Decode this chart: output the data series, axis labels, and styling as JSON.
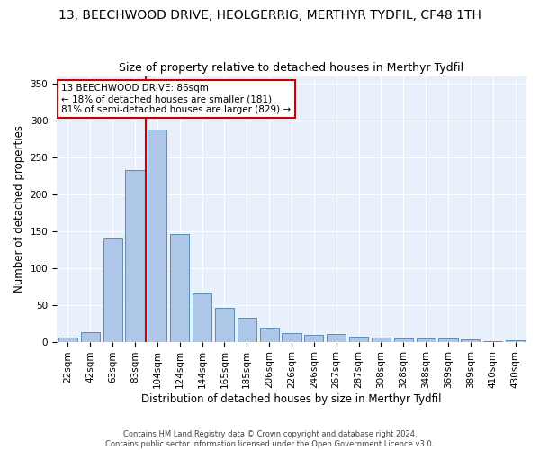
{
  "title": "13, BEECHWOOD DRIVE, HEOLGERRIG, MERTHYR TYDFIL, CF48 1TH",
  "subtitle": "Size of property relative to detached houses in Merthyr Tydfil",
  "xlabel": "Distribution of detached houses by size in Merthyr Tydfil",
  "ylabel": "Number of detached properties",
  "footer_line1": "Contains HM Land Registry data © Crown copyright and database right 2024.",
  "footer_line2": "Contains public sector information licensed under the Open Government Licence v3.0.",
  "categories": [
    "22sqm",
    "42sqm",
    "63sqm",
    "83sqm",
    "104sqm",
    "124sqm",
    "144sqm",
    "165sqm",
    "185sqm",
    "206sqm",
    "226sqm",
    "246sqm",
    "267sqm",
    "287sqm",
    "308sqm",
    "328sqm",
    "348sqm",
    "369sqm",
    "389sqm",
    "410sqm",
    "430sqm"
  ],
  "values": [
    5,
    13,
    140,
    232,
    287,
    146,
    65,
    46,
    33,
    19,
    12,
    9,
    10,
    7,
    6,
    4,
    4,
    4,
    3,
    1,
    2
  ],
  "bar_color": "#aec6e8",
  "bar_edge_color": "#5b8db8",
  "red_line_label": "13 BEECHWOOD DRIVE: 86sqm",
  "annotation_line2": "← 18% of detached houses are smaller (181)",
  "annotation_line3": "81% of semi-detached houses are larger (829) →",
  "ylim": [
    0,
    360
  ],
  "yticks": [
    0,
    50,
    100,
    150,
    200,
    250,
    300,
    350
  ],
  "background_color": "#e8f0fb",
  "grid_color": "#ffffff",
  "annotation_box_color": "#ffffff",
  "annotation_box_edge": "#cc0000",
  "red_line_color": "#cc0000",
  "title_fontsize": 10,
  "subtitle_fontsize": 9,
  "axis_label_fontsize": 8.5,
  "tick_fontsize": 7.5,
  "annotation_fontsize": 7.5
}
